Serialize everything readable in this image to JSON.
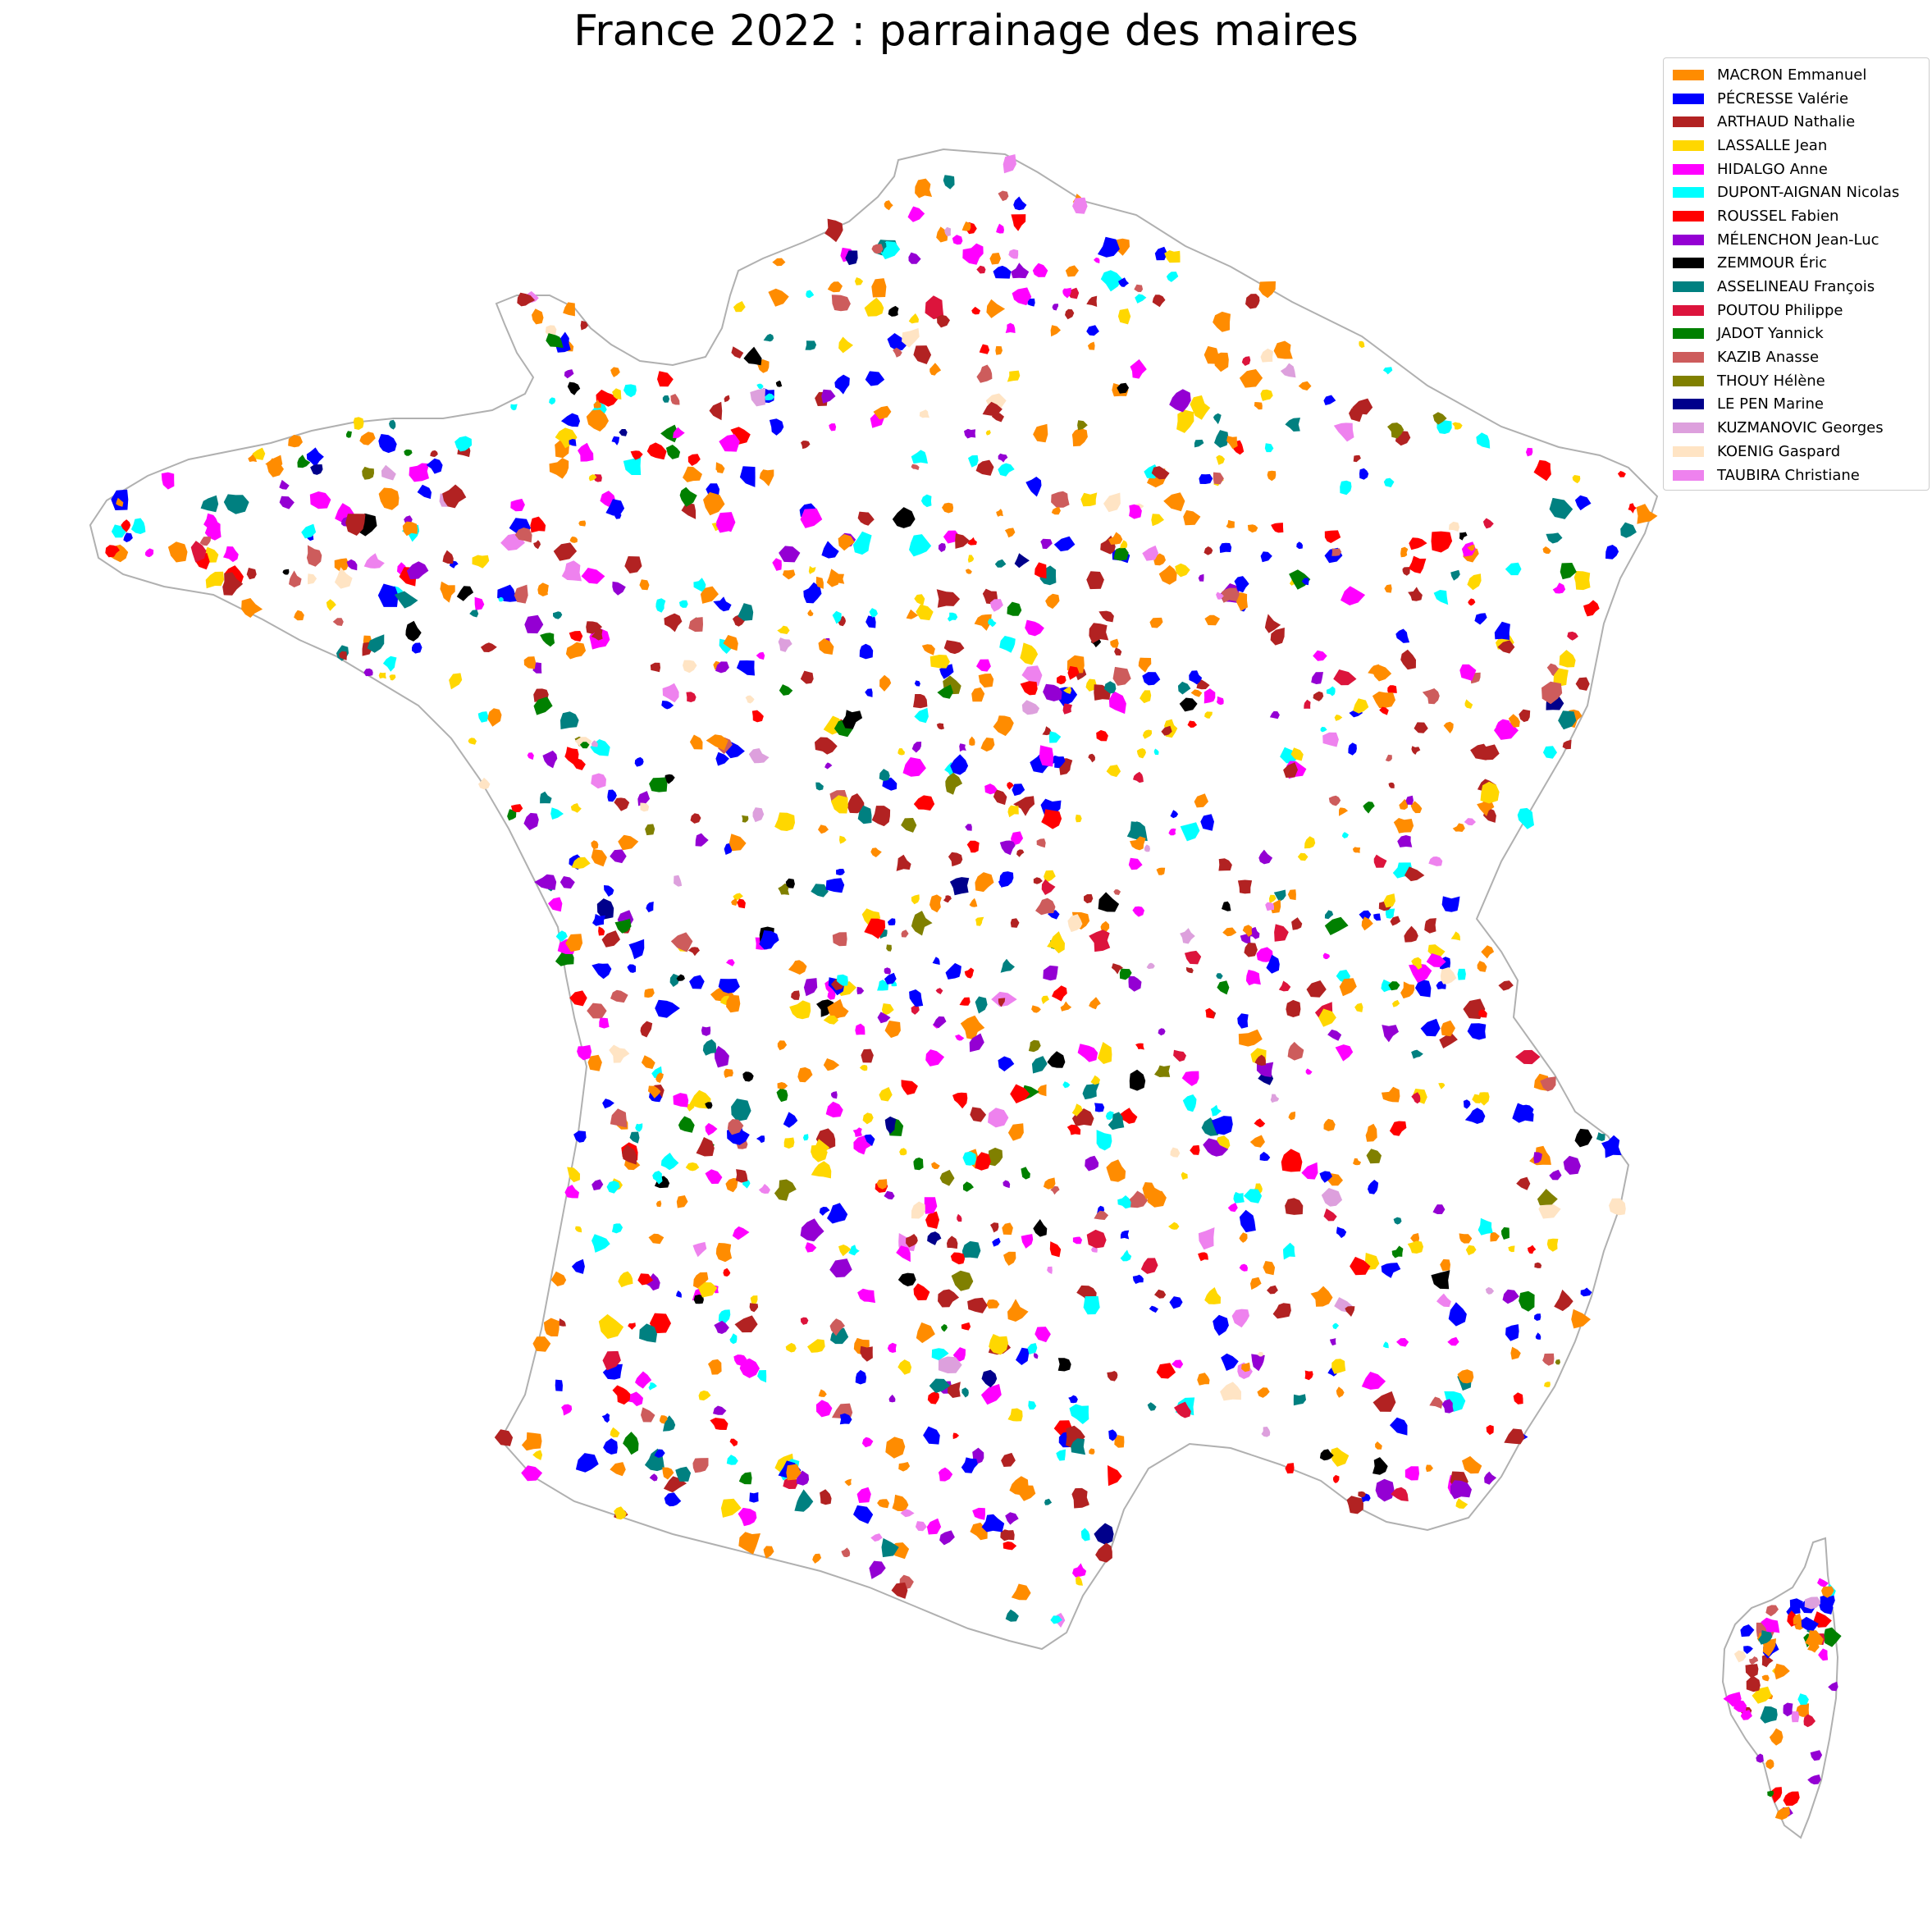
{
  "title": "France 2022 : parrainage des maires",
  "legend": [
    {
      "name": "MACRON Emmanuel",
      "color": "#ff8c00"
    },
    {
      "name": "PÉCRESSE Valérie",
      "color": "#0000ff"
    },
    {
      "name": "ARTHAUD Nathalie",
      "color": "#b22222"
    },
    {
      "name": "LASSALLE Jean",
      "color": "#ffd700"
    },
    {
      "name": "HIDALGO Anne",
      "color": "#ff00ff"
    },
    {
      "name": "DUPONT-AIGNAN Nicolas",
      "color": "#00ffff"
    },
    {
      "name": "ROUSSEL Fabien",
      "color": "#ff0000"
    },
    {
      "name": "MÉLENCHON Jean-Luc",
      "color": "#9400d3"
    },
    {
      "name": "ZEMMOUR Éric",
      "color": "#000000"
    },
    {
      "name": "ASSELINEAU François",
      "color": "#008080"
    },
    {
      "name": "POUTOU Philippe",
      "color": "#dc143c"
    },
    {
      "name": "JADOT Yannick",
      "color": "#008000"
    },
    {
      "name": "KAZIB Anasse",
      "color": "#cd5c5c"
    },
    {
      "name": "THOUY Hélène",
      "color": "#808000"
    },
    {
      "name": "LE PEN Marine",
      "color": "#00008b"
    },
    {
      "name": "KUZMANOVIC Georges",
      "color": "#dda0dd"
    },
    {
      "name": "KOENIG Gaspard",
      "color": "#ffe4c4"
    },
    {
      "name": "TAUBIRA Christiane",
      "color": "#ee82ee"
    }
  ]
}
